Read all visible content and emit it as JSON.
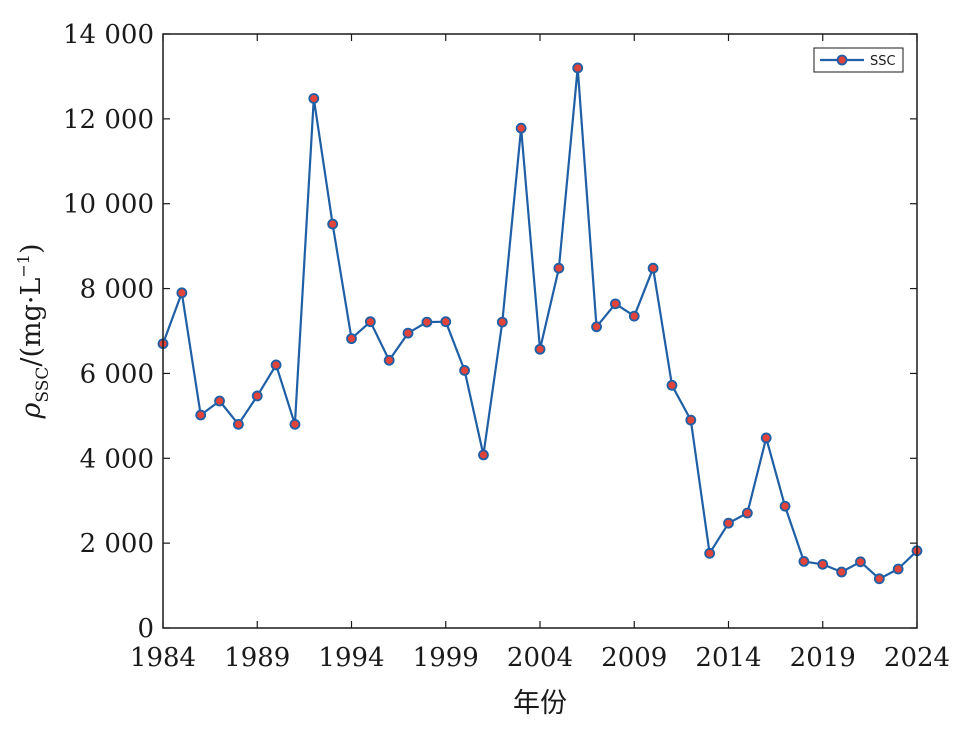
{
  "chart_data": {
    "type": "line",
    "xlabel": "年份",
    "ylabel": {
      "symbol": "ρ",
      "subscript": "SSC",
      "unit_open": "/(mg·L",
      "unit_sup": "−1",
      "unit_close": ")"
    },
    "xlim": [
      1984,
      2024
    ],
    "ylim": [
      0,
      14000
    ],
    "x_ticks": [
      1984,
      1989,
      1994,
      1999,
      2004,
      2009,
      2014,
      2019,
      2024
    ],
    "x_tick_labels": [
      "1984",
      "1989",
      "1994",
      "1999",
      "2004",
      "2009",
      "2014",
      "2019",
      "2024"
    ],
    "y_ticks": [
      0,
      2000,
      4000,
      6000,
      8000,
      10000,
      12000,
      14000
    ],
    "y_tick_labels": [
      "0",
      "2 000",
      "4 000",
      "6 000",
      "8 000",
      "10 000",
      "12 000",
      "14 000"
    ],
    "grid": false,
    "legend": {
      "placement": "top-right",
      "entries": [
        "SSC"
      ]
    },
    "line_color": "#1f5fa6",
    "marker_color": "#e0443a",
    "series": [
      {
        "name": "SSC",
        "x": [
          1984,
          1985,
          1986,
          1987,
          1988,
          1989,
          1990,
          1991,
          1992,
          1993,
          1994,
          1995,
          1996,
          1997,
          1998,
          1999,
          2000,
          2001,
          2002,
          2003,
          2004,
          2005,
          2006,
          2007,
          2008,
          2009,
          2010,
          2011,
          2012,
          2013,
          2014,
          2015,
          2016,
          2017,
          2018,
          2019,
          2020,
          2021,
          2022,
          2023,
          2024
        ],
        "y": [
          6700,
          7900,
          5020,
          5350,
          4800,
          5470,
          6200,
          4800,
          12480,
          9520,
          6820,
          7220,
          6310,
          6950,
          7210,
          7220,
          6070,
          4080,
          7210,
          11780,
          6570,
          8480,
          13200,
          7100,
          7640,
          7350,
          8480,
          5720,
          4900,
          1760,
          2470,
          2710,
          4480,
          2870,
          1570,
          1500,
          1320,
          1560,
          1160,
          1390,
          1820
        ]
      }
    ]
  }
}
